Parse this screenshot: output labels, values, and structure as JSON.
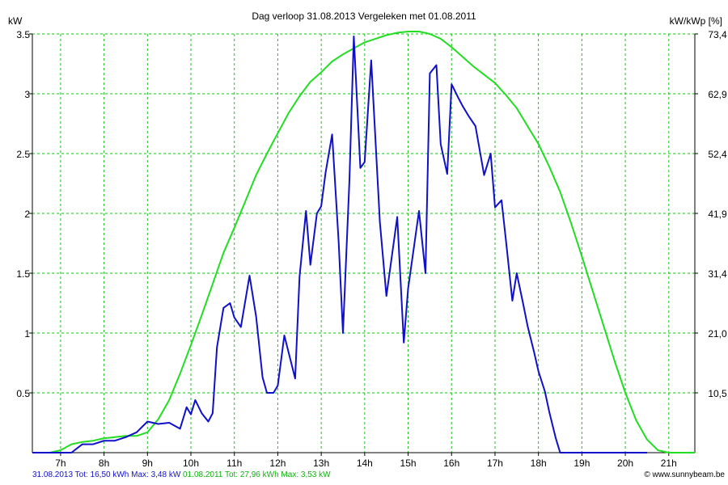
{
  "chart_data": {
    "type": "line",
    "title": "Dag  verloop 31.08.2013   Vergeleken met 01.08.2011",
    "ylabel_left": "kW",
    "ylabel_right": "kW/kWp [%]",
    "ylim": [
      0,
      3.5
    ],
    "xlim": [
      6.35,
      21.6
    ],
    "x_ticks": [
      7,
      8,
      9,
      10,
      11,
      12,
      13,
      14,
      15,
      16,
      17,
      18,
      19,
      20,
      21
    ],
    "x_tick_labels": [
      "7h",
      "8h",
      "9h",
      "10h",
      "11h",
      "12h",
      "13h",
      "14h",
      "15h",
      "16h",
      "17h",
      "18h",
      "19h",
      "20h",
      "21h"
    ],
    "y_ticks": [
      0.5,
      1,
      1.5,
      2,
      2.5,
      3,
      3.5
    ],
    "y_tick_labels": [
      "0.5",
      "1",
      "1.5",
      "2",
      "2.5",
      "3",
      "3.5"
    ],
    "y2_tick_labels": [
      "10,5",
      "21,0",
      "31,4",
      "41,9",
      "52,4",
      "62,9",
      "73,4"
    ],
    "grid": true,
    "series": [
      {
        "name": "31.08.2013",
        "color": "#1010c8",
        "x": [
          6.35,
          7.0,
          7.25,
          7.5,
          7.75,
          8.0,
          8.25,
          8.5,
          8.75,
          9.0,
          9.25,
          9.5,
          9.75,
          9.9,
          10.0,
          10.1,
          10.25,
          10.4,
          10.5,
          10.6,
          10.75,
          10.9,
          11.0,
          11.15,
          11.35,
          11.5,
          11.65,
          11.75,
          11.9,
          12.0,
          12.15,
          12.4,
          12.5,
          12.65,
          12.75,
          12.9,
          13.0,
          13.1,
          13.25,
          13.4,
          13.5,
          13.65,
          13.75,
          13.9,
          14.0,
          14.15,
          14.35,
          14.5,
          14.75,
          14.9,
          15.0,
          15.25,
          15.4,
          15.5,
          15.65,
          15.75,
          15.9,
          16.0,
          16.15,
          16.25,
          16.4,
          16.55,
          16.75,
          16.9,
          17.0,
          17.15,
          17.25,
          17.4,
          17.5,
          17.65,
          17.75,
          17.9,
          18.0,
          18.15,
          18.25,
          18.4,
          18.5,
          18.65,
          18.75,
          18.9,
          19.0,
          19.25,
          19.5,
          19.75,
          19.9,
          20.0,
          20.15,
          20.5
        ],
        "y": [
          0.0,
          0.0,
          0.0,
          0.07,
          0.07,
          0.1,
          0.1,
          0.13,
          0.17,
          0.26,
          0.24,
          0.25,
          0.2,
          0.38,
          0.32,
          0.44,
          0.33,
          0.26,
          0.33,
          0.88,
          1.21,
          1.25,
          1.13,
          1.05,
          1.48,
          1.14,
          0.63,
          0.5,
          0.5,
          0.56,
          0.98,
          0.62,
          1.47,
          2.02,
          1.57,
          2.0,
          2.06,
          2.34,
          2.66,
          1.77,
          1.0,
          2.28,
          3.48,
          2.38,
          2.43,
          3.28,
          1.93,
          1.31,
          1.97,
          0.92,
          1.37,
          2.02,
          1.5,
          3.17,
          3.24,
          2.58,
          2.33,
          3.08,
          2.97,
          2.9,
          2.81,
          2.73,
          2.32,
          2.5,
          2.05,
          2.11,
          1.78,
          1.27,
          1.5,
          1.24,
          1.06,
          0.84,
          0.68,
          0.51,
          0.34,
          0.12,
          0.0,
          0.0,
          0.0,
          0.0,
          0.0,
          0.0,
          0.0,
          0.0,
          0.0,
          0.0,
          0.0,
          0.0
        ]
      },
      {
        "name": "01.08.2011",
        "color": "#22dd22",
        "x": [
          6.35,
          6.75,
          7.0,
          7.25,
          7.5,
          7.75,
          8.0,
          8.25,
          8.5,
          8.75,
          9.0,
          9.25,
          9.5,
          9.75,
          10.0,
          10.25,
          10.5,
          10.75,
          11.0,
          11.25,
          11.5,
          11.75,
          12.0,
          12.25,
          12.5,
          12.75,
          13.0,
          13.25,
          13.5,
          13.75,
          14.0,
          14.25,
          14.5,
          14.75,
          15.0,
          15.25,
          15.5,
          15.75,
          16.0,
          16.25,
          16.5,
          16.75,
          17.0,
          17.25,
          17.5,
          17.75,
          18.0,
          18.25,
          18.5,
          18.75,
          19.0,
          19.25,
          19.5,
          19.75,
          20.0,
          20.25,
          20.5,
          20.75,
          21.0,
          21.25,
          21.6
        ],
        "y": [
          0.0,
          0.0,
          0.02,
          0.07,
          0.09,
          0.1,
          0.12,
          0.13,
          0.14,
          0.14,
          0.17,
          0.28,
          0.44,
          0.66,
          0.9,
          1.15,
          1.41,
          1.67,
          1.88,
          2.1,
          2.32,
          2.5,
          2.67,
          2.84,
          2.98,
          3.1,
          3.18,
          3.27,
          3.33,
          3.38,
          3.43,
          3.46,
          3.49,
          3.51,
          3.52,
          3.52,
          3.5,
          3.46,
          3.39,
          3.31,
          3.23,
          3.16,
          3.09,
          2.99,
          2.88,
          2.73,
          2.58,
          2.39,
          2.18,
          1.92,
          1.64,
          1.35,
          1.06,
          0.77,
          0.5,
          0.27,
          0.11,
          0.02,
          0.0,
          0.0,
          0.0
        ]
      }
    ]
  },
  "footer": {
    "left_a": "31.08.2013 Tot: 16,50 kWh Max: 3,48 kW",
    "left_b": "01.08.2011 Tot: 27,96 kWh Max: 3,53 kW",
    "right": "© www.sunnybeam.be"
  }
}
